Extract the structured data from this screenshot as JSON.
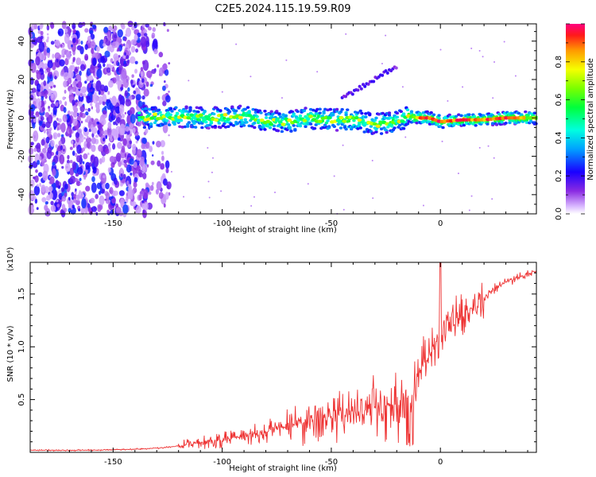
{
  "title": "C2E5.2024.115.19.59.R09",
  "chart_data": [
    {
      "type": "heatmap",
      "xlabel": "Height of straight line (km)",
      "ylabel": "Frequency (Hz)",
      "xlim": [
        -188,
        44
      ],
      "ylim": [
        -50,
        49
      ],
      "x_ticks": [
        -150,
        -100,
        -50,
        0
      ],
      "y_ticks": [
        -40,
        -20,
        0,
        20,
        40
      ],
      "colorbar": {
        "label": "Normalized spectral amplitude",
        "range": [
          0.0,
          1.0
        ],
        "ticks": [
          "0.0",
          "0.2",
          "0.4",
          "0.6",
          "0.8"
        ]
      },
      "ridge": {
        "x": [
          -138,
          -125,
          -110,
          -100,
          -90,
          -80,
          -70,
          -60,
          -50,
          -40,
          -30,
          -20,
          -15,
          -10,
          -5,
          0,
          10,
          20,
          30,
          44
        ],
        "y": [
          0,
          1,
          0,
          0,
          1,
          -2,
          -2,
          0,
          -1,
          -1,
          -3,
          -2,
          1,
          0,
          0,
          -2,
          -1,
          -1,
          0,
          0
        ]
      },
      "notes": "noise speckle for x < -125 km, signal band near 0 Hz between -138 and 44 km, faint harmonic line near 10-27 Hz at -45 to -20 km"
    },
    {
      "type": "line",
      "xlabel": "Height of straight line (km)",
      "ylabel": "SNR (10 * v/v)",
      "y_multiplier": "(x10⁴)",
      "xlim": [
        -188,
        44
      ],
      "ylim": [
        0,
        1.8
      ],
      "x_ticks": [
        -150,
        -100,
        -50,
        0
      ],
      "y_ticks": [
        0.5,
        1.0,
        1.5
      ],
      "series": [
        {
          "color": "#ee3333",
          "x": [
            -188,
            -160,
            -140,
            -130,
            -120,
            -110,
            -100,
            -90,
            -80,
            -70,
            -60,
            -50,
            -40,
            -30,
            -20,
            -14,
            -10,
            -5,
            0,
            5,
            10,
            15,
            20,
            25,
            30,
            35,
            40,
            44
          ],
          "y": [
            0.02,
            0.02,
            0.03,
            0.04,
            0.06,
            0.09,
            0.12,
            0.16,
            0.2,
            0.25,
            0.29,
            0.34,
            0.38,
            0.42,
            0.47,
            0.55,
            0.75,
            0.92,
            1.08,
            1.18,
            1.28,
            1.38,
            1.47,
            1.55,
            1.61,
            1.65,
            1.69,
            1.71
          ]
        }
      ]
    }
  ]
}
